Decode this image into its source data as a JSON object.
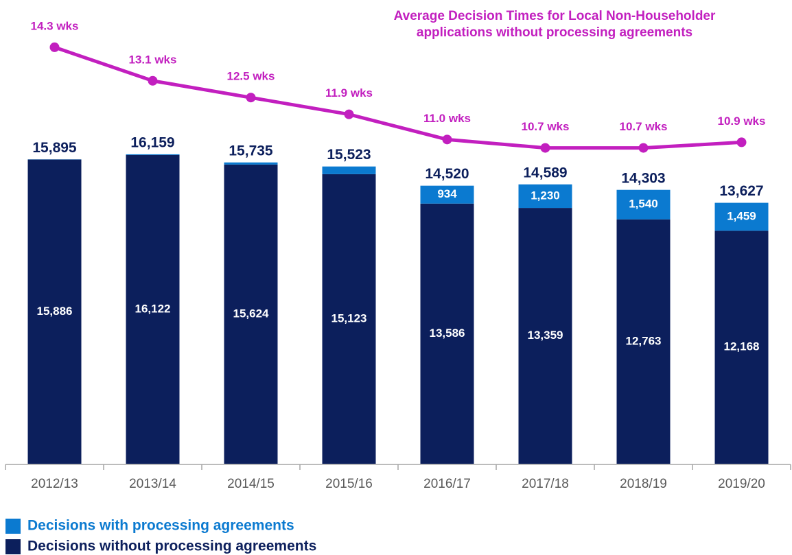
{
  "chart_data": {
    "type": "bar",
    "title": [
      "Average Decision Times for Local Non-Householder",
      "applications without processing agreements"
    ],
    "categories": [
      "2012/13",
      "2013/14",
      "2014/15",
      "2015/16",
      "2016/17",
      "2017/18",
      "2018/19",
      "2019/20"
    ],
    "stacked": true,
    "ylim": [
      0,
      23500
    ],
    "y2lim": [
      -0.6,
      15.5
    ],
    "series": [
      {
        "name": "Decisions without processing agreements",
        "color": "#0c1f5c",
        "values": [
          15886,
          16122,
          15624,
          15123,
          13586,
          13359,
          12763,
          12168
        ],
        "value_labels": [
          "15,886",
          "16,122",
          "15,624",
          "15,123",
          "13,586",
          "13,359",
          "12,763",
          "12,168"
        ]
      },
      {
        "name": "Decisions with processing agreements",
        "color": "#0b7ad0",
        "values": [
          9,
          37,
          111,
          400,
          934,
          1230,
          1540,
          1459
        ],
        "value_labels": [
          null,
          null,
          null,
          null,
          "934",
          "1,230",
          "1,540",
          "1,459"
        ]
      }
    ],
    "totals": [
      15895,
      16159,
      15735,
      15523,
      14520,
      14589,
      14303,
      13627
    ],
    "totals_labels": [
      "15,895",
      "16,159",
      "15,735",
      "15,523",
      "14,520",
      "14,589",
      "14,303",
      "13,627"
    ],
    "line": {
      "type": "line",
      "axis": "y2",
      "color": "#c21fbf",
      "values": [
        14.3,
        13.1,
        12.5,
        11.9,
        11.0,
        10.7,
        10.7,
        10.9
      ],
      "value_labels": [
        "14.3 wks",
        "13.1 wks",
        "12.5 wks",
        "11.9 wks",
        "11.0 wks",
        "10.7 wks",
        "10.7 wks",
        "10.9 wks"
      ]
    },
    "legend_order": [
      1,
      0
    ]
  }
}
